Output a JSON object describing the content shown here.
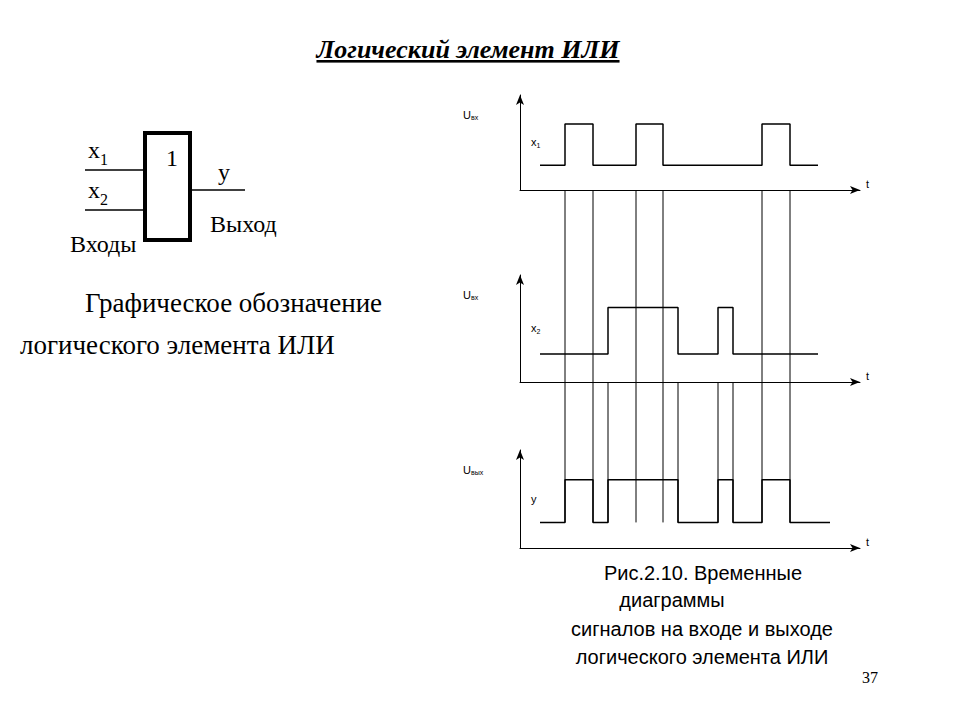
{
  "title": "Логический элемент ИЛИ",
  "gate": {
    "symbol": "1",
    "inputs": [
      "x1",
      "x2"
    ],
    "output": "y",
    "inputs_label": "Входы",
    "output_label": "Выход",
    "caption": [
      "Графическое обозначение",
      "логического элемента ИЛИ"
    ]
  },
  "chart_data": [
    {
      "type": "line",
      "line_style": "step",
      "color": "#000000",
      "y_label": "Uвх",
      "x_label": "t",
      "xlim": [
        0,
        340
      ],
      "ylim": [
        -0.6,
        1.7
      ],
      "tick_labels": false,
      "grid": false,
      "series": [
        {
          "name": "x1",
          "x": [
            20,
            45,
            73,
            116,
            143,
            242,
            270,
            298
          ],
          "values": [
            0,
            1,
            0,
            1,
            0,
            1,
            0,
            0
          ]
        }
      ]
    },
    {
      "type": "line",
      "line_style": "step",
      "color": "#000000",
      "y_label": "Uвх",
      "x_label": "t",
      "xlim": [
        0,
        340
      ],
      "ylim": [
        -0.6,
        1.7
      ],
      "tick_labels": false,
      "grid": false,
      "series": [
        {
          "name": "x2",
          "x": [
            20,
            88,
            158,
            198,
            213,
            298
          ],
          "values": [
            0,
            1,
            0,
            1,
            0,
            0
          ]
        }
      ]
    },
    {
      "type": "line",
      "line_style": "step",
      "color": "#000000",
      "y_label": "Uвых",
      "x_label": "t",
      "xlim": [
        0,
        340
      ],
      "ylim": [
        -0.6,
        1.7
      ],
      "tick_labels": false,
      "grid": false,
      "series": [
        {
          "name": "y",
          "x": [
            20,
            45,
            73,
            88,
            158,
            198,
            213,
            242,
            270,
            310
          ],
          "values": [
            0,
            1,
            0,
            1,
            0,
            1,
            0,
            1,
            0,
            0
          ]
        }
      ]
    }
  ],
  "caption": [
    "Рис.2.10. Временные",
    "диаграммы",
    "сигналов на входе и выходе",
    "логического элемента ИЛИ"
  ],
  "page_number": 37
}
